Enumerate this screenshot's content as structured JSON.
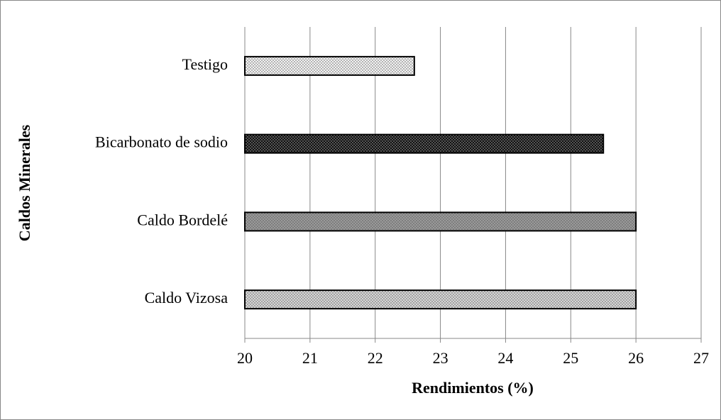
{
  "chart_data": {
    "type": "hbar",
    "x_label": "Rendimientos (%)",
    "y_label": "Caldos Minerales",
    "categories": [
      "Testigo",
      "Bicarbonato de sodio",
      "Caldo Bordelé",
      "Caldo Vizosa"
    ],
    "values": [
      22.6,
      25.5,
      26,
      26
    ],
    "colors": [
      "#f2f2f2",
      "#111111",
      "#9a9a9a",
      "#d6d6d6"
    ],
    "xlim": [
      20,
      27
    ],
    "xticks": [
      20,
      21,
      22,
      23,
      24,
      25,
      26,
      27
    ],
    "grid": true
  }
}
